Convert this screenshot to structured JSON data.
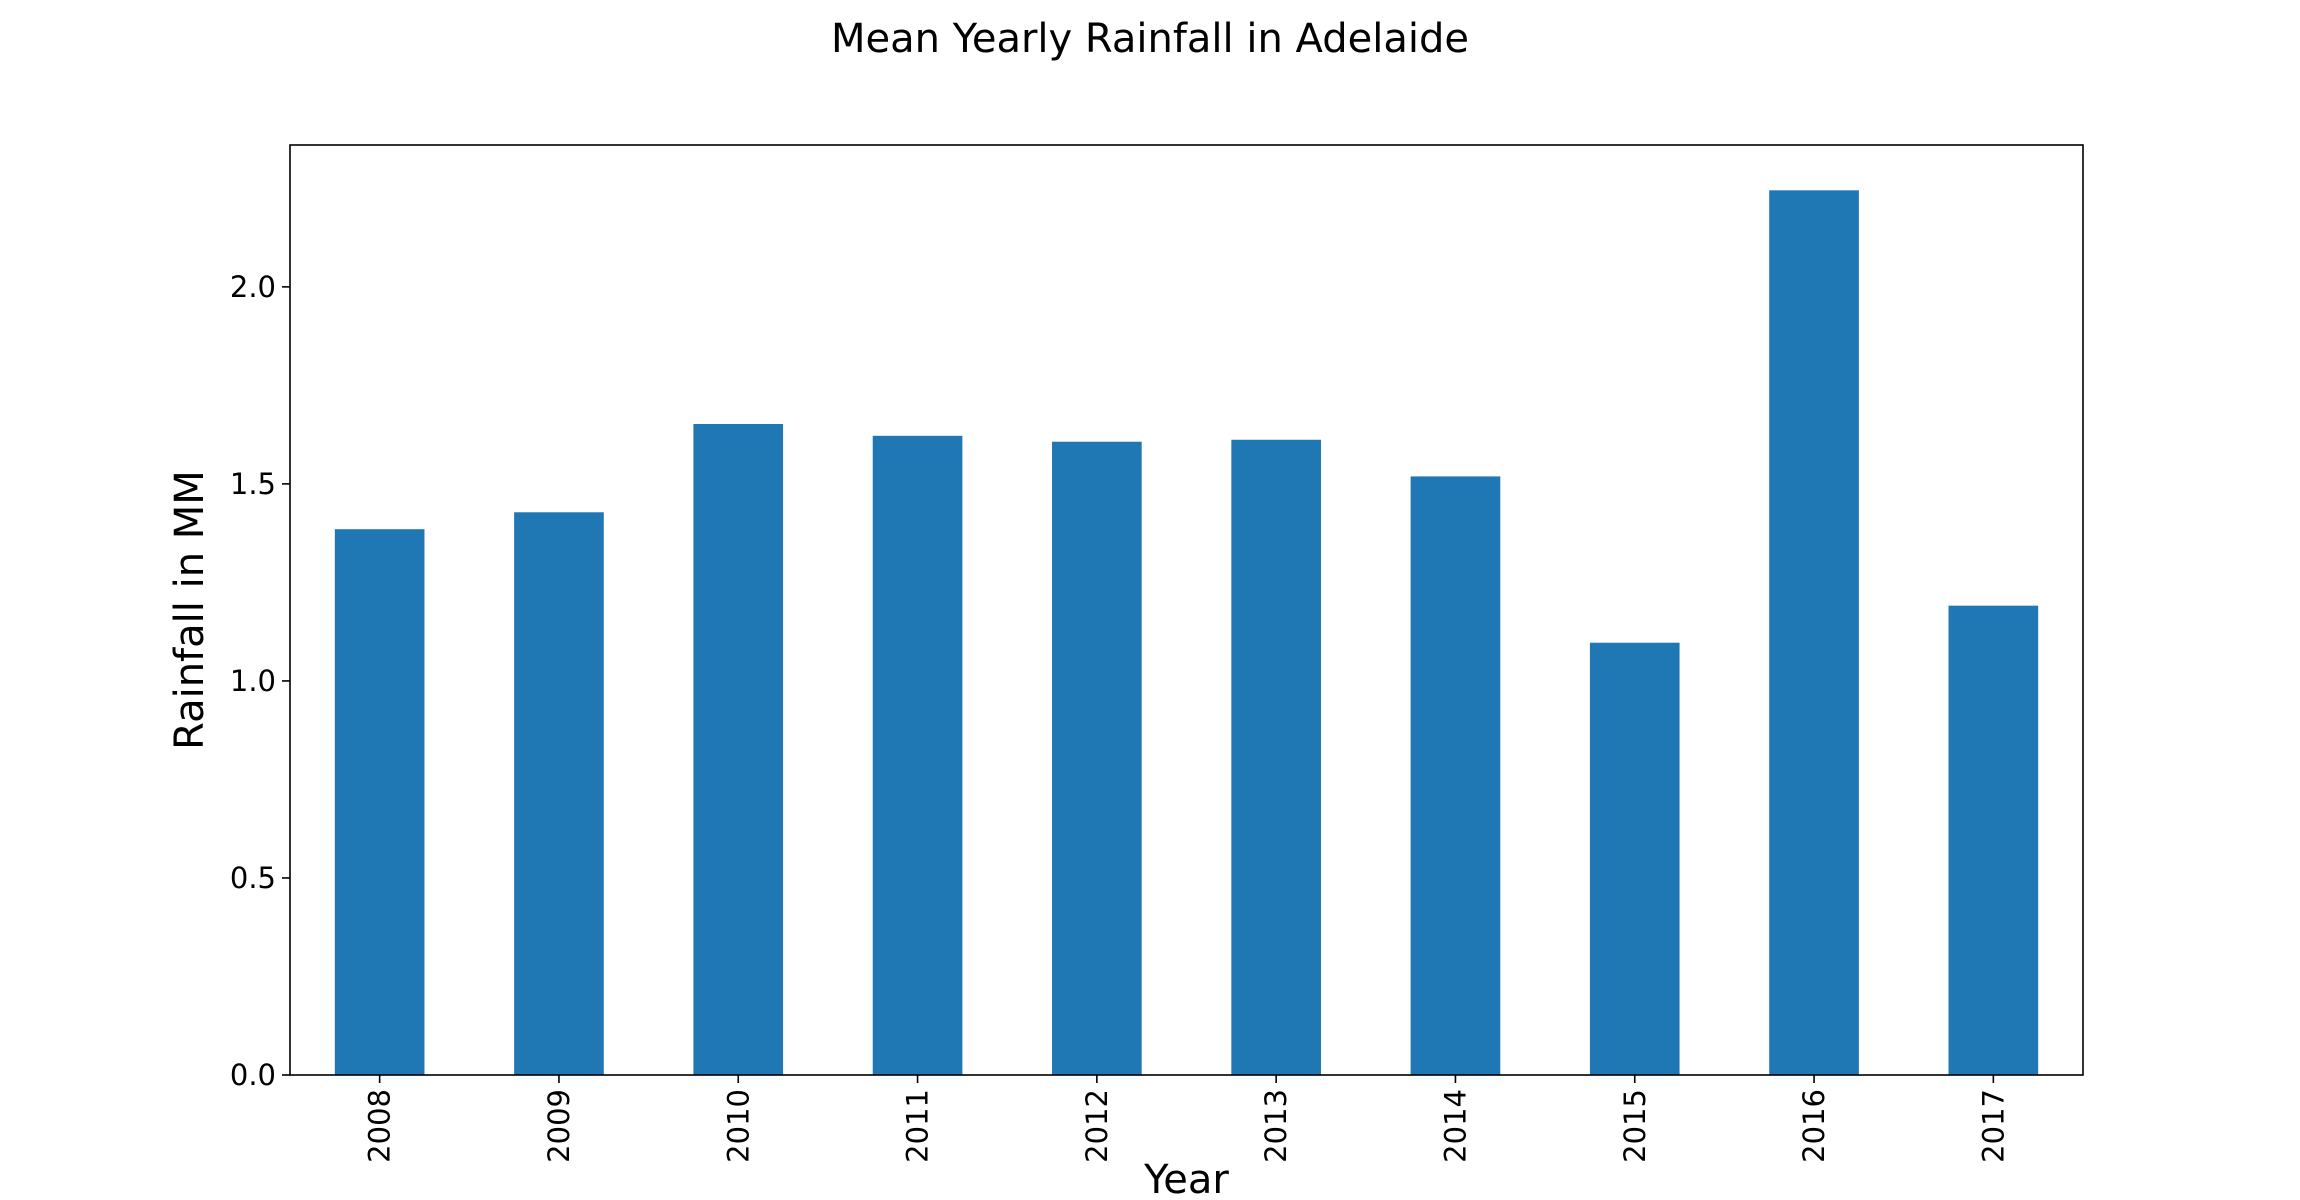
{
  "chart_data": {
    "type": "bar",
    "title": "Mean Yearly Rainfall in Adelaide",
    "xlabel": "Year",
    "ylabel": "Rainfall in MM",
    "categories": [
      "2008",
      "2009",
      "2010",
      "2011",
      "2012",
      "2013",
      "2014",
      "2015",
      "2016",
      "2017"
    ],
    "values": [
      1.385,
      1.428,
      1.652,
      1.622,
      1.607,
      1.612,
      1.519,
      1.097,
      2.245,
      1.191
    ],
    "ylim": [
      0,
      2.36
    ],
    "yticks": [
      0.0,
      0.5,
      1.0,
      1.5,
      2.0
    ],
    "ytick_labels": [
      "0.0",
      "0.5",
      "1.0",
      "1.5",
      "2.0"
    ],
    "grid": false,
    "legend": "none",
    "colors": {
      "bar": "#1f77b4",
      "axis": "#000000",
      "background": "#ffffff"
    }
  }
}
